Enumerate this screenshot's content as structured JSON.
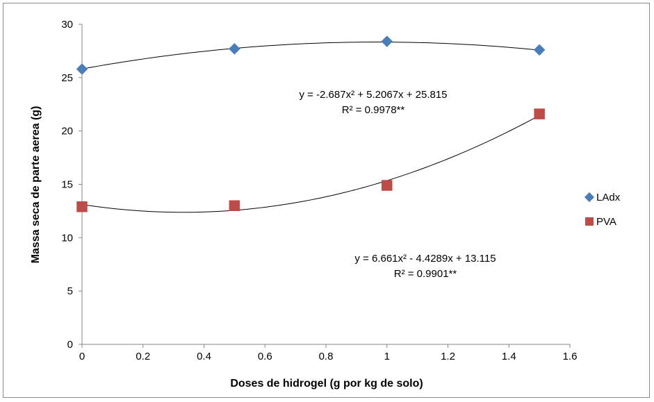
{
  "chart_data": {
    "type": "scatter",
    "xlabel": "Doses de hidrogel (g por kg de solo)",
    "ylabel": "Massa seca de parte aerea (g)",
    "xlim": [
      0,
      1.6
    ],
    "ylim": [
      0,
      30
    ],
    "x_ticks": [
      0,
      0.2,
      0.4,
      0.6,
      0.8,
      1,
      1.2,
      1.4,
      1.6
    ],
    "x_tick_labels": [
      "0",
      "0.2",
      "0.4",
      "0.6",
      "0.8",
      "1",
      "1.2",
      "1.4",
      "1.6"
    ],
    "y_ticks": [
      0,
      5,
      10,
      15,
      20,
      25,
      30
    ],
    "y_tick_labels": [
      "0",
      "5",
      "10",
      "15",
      "20",
      "25",
      "30"
    ],
    "grid": false,
    "legend_position": "right",
    "series": [
      {
        "name": "LAdx",
        "marker": "diamond",
        "color": "#4a7ebb",
        "x": [
          0,
          0.5,
          1,
          1.5
        ],
        "y": [
          25.8,
          27.7,
          28.4,
          27.6
        ],
        "trendline": {
          "type": "polynomial",
          "a": -2.687,
          "b": 5.2067,
          "c": 25.815
        },
        "equation_text": "y = -2.687x² + 5.2067x + 25.815",
        "r2_text": "R² = 0.9978**"
      },
      {
        "name": "PVA",
        "marker": "square",
        "color": "#be4b48",
        "x": [
          0,
          0.5,
          1,
          1.5
        ],
        "y": [
          12.9,
          13.0,
          14.9,
          21.6
        ],
        "trendline": {
          "type": "polynomial",
          "a": 6.661,
          "b": -4.4289,
          "c": 13.115
        },
        "equation_text": "y = 6.661x² - 4.4289x + 13.115",
        "r2_text": "R² = 0.9901**"
      }
    ]
  }
}
